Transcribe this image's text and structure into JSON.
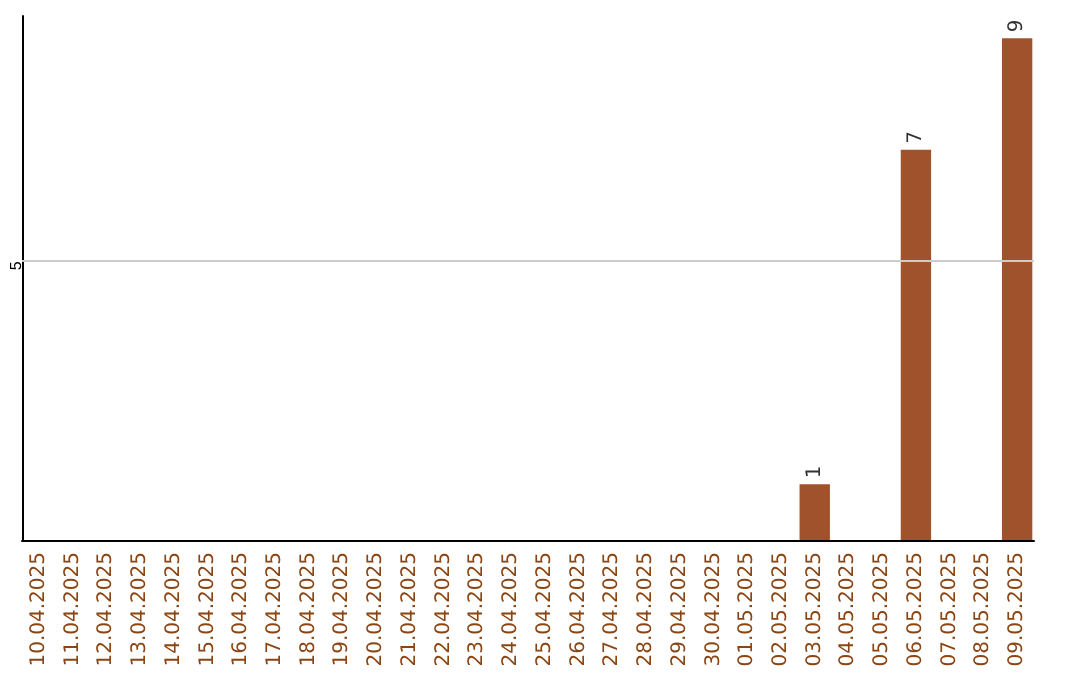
{
  "chart_data": {
    "type": "bar",
    "categories": [
      "10.04.2025",
      "11.04.2025",
      "12.04.2025",
      "13.04.2025",
      "14.04.2025",
      "15.04.2025",
      "16.04.2025",
      "17.04.2025",
      "18.04.2025",
      "19.04.2025",
      "20.04.2025",
      "21.04.2025",
      "22.04.2025",
      "23.04.2025",
      "24.04.2025",
      "25.04.2025",
      "26.04.2025",
      "27.04.2025",
      "28.04.2025",
      "29.04.2025",
      "30.04.2025",
      "01.05.2025",
      "02.05.2025",
      "03.05.2025",
      "04.05.2025",
      "05.05.2025",
      "06.05.2025",
      "07.05.2025",
      "08.05.2025",
      "09.05.2025"
    ],
    "values": [
      null,
      null,
      null,
      null,
      null,
      null,
      null,
      null,
      null,
      null,
      null,
      null,
      null,
      null,
      null,
      null,
      null,
      null,
      null,
      null,
      null,
      null,
      null,
      1,
      null,
      null,
      7,
      null,
      null,
      9
    ],
    "data_labels": true,
    "color": "#a0522d",
    "ylim": [
      0,
      9.4
    ],
    "ref_lines": [
      {
        "axis": "y",
        "value": 5,
        "label": "5",
        "color": "#cccccc"
      }
    ]
  }
}
